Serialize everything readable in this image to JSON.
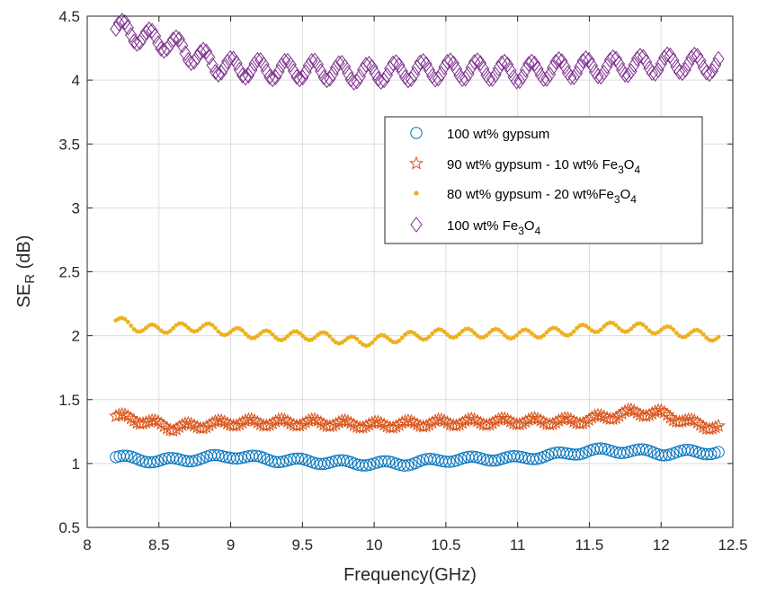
{
  "chart_data": {
    "type": "scatter",
    "title": "",
    "xlabel": "Frequency(GHz)",
    "ylabel_main": "SE",
    "ylabel_sub": "R",
    "ylabel_unit": " (dB)",
    "xlim": [
      8,
      12.5
    ],
    "ylim": [
      0.5,
      4.5
    ],
    "xticks": [
      "8",
      "8.5",
      "9",
      "9.5",
      "10",
      "10.5",
      "11",
      "11.5",
      "12",
      "12.5"
    ],
    "yticks": [
      "0.5",
      "1",
      "1.5",
      "2",
      "2.5",
      "3",
      "3.5",
      "4",
      "4.5"
    ],
    "grid": true,
    "legend_position": "upper-right",
    "series": [
      {
        "key": "gypsum100",
        "legend": [
          {
            "t": "100 wt% gypsum"
          }
        ],
        "marker": "circle",
        "color": "#0072BD",
        "x_start": 8.2,
        "x_end": 12.4,
        "anchors": [
          [
            8.2,
            1.05
          ],
          [
            8.5,
            1.02
          ],
          [
            8.8,
            1.04
          ],
          [
            9.0,
            1.06
          ],
          [
            9.3,
            1.03
          ],
          [
            9.7,
            1.01
          ],
          [
            10.0,
            1.0
          ],
          [
            10.2,
            1.0
          ],
          [
            10.5,
            1.03
          ],
          [
            10.8,
            1.04
          ],
          [
            11.0,
            1.04
          ],
          [
            11.3,
            1.07
          ],
          [
            11.5,
            1.1
          ],
          [
            11.8,
            1.1
          ],
          [
            12.0,
            1.08
          ],
          [
            12.2,
            1.09
          ],
          [
            12.4,
            1.09
          ]
        ]
      },
      {
        "key": "gypsum90",
        "legend": [
          {
            "t": "90 wt% gypsum - 10 wt% Fe"
          },
          {
            "t": "3",
            "s": "sub"
          },
          {
            "t": "O"
          },
          {
            "t": "4",
            "s": "sub"
          }
        ],
        "marker": "star",
        "color": "#D95319",
        "x_start": 8.2,
        "x_end": 12.4,
        "anchors": [
          [
            8.2,
            1.37
          ],
          [
            8.4,
            1.33
          ],
          [
            8.6,
            1.28
          ],
          [
            8.8,
            1.3
          ],
          [
            9.0,
            1.32
          ],
          [
            9.3,
            1.32
          ],
          [
            9.6,
            1.32
          ],
          [
            10.0,
            1.3
          ],
          [
            10.5,
            1.32
          ],
          [
            11.0,
            1.33
          ],
          [
            11.4,
            1.33
          ],
          [
            11.6,
            1.36
          ],
          [
            11.8,
            1.4
          ],
          [
            12.0,
            1.39
          ],
          [
            12.2,
            1.32
          ],
          [
            12.4,
            1.28
          ]
        ]
      },
      {
        "key": "gypsum80",
        "legend": [
          {
            "t": "80 wt% gypsum - 20 wt%Fe"
          },
          {
            "t": "3",
            "s": "sub"
          },
          {
            "t": "O"
          },
          {
            "t": "4",
            "s": "sub"
          }
        ],
        "marker": "dot",
        "color": "#EDB120",
        "x_start": 8.2,
        "x_end": 12.4,
        "anchors": [
          [
            8.2,
            2.12
          ],
          [
            8.4,
            2.05
          ],
          [
            8.6,
            2.06
          ],
          [
            8.8,
            2.07
          ],
          [
            9.0,
            2.03
          ],
          [
            9.3,
            2.0
          ],
          [
            9.6,
            2.0
          ],
          [
            9.9,
            1.95
          ],
          [
            10.2,
            1.99
          ],
          [
            10.5,
            2.02
          ],
          [
            10.8,
            2.02
          ],
          [
            11.0,
            2.01
          ],
          [
            11.3,
            2.03
          ],
          [
            11.6,
            2.07
          ],
          [
            11.9,
            2.06
          ],
          [
            12.1,
            2.03
          ],
          [
            12.4,
            1.99
          ]
        ]
      },
      {
        "key": "fe3o4",
        "legend": [
          {
            "t": "100 wt% Fe"
          },
          {
            "t": "3",
            "s": "sub"
          },
          {
            "t": "O"
          },
          {
            "t": "4",
            "s": "sub"
          }
        ],
        "marker": "diamond",
        "color": "#7E2F8E",
        "x_start": 8.2,
        "x_end": 12.4,
        "anchors": [
          [
            8.2,
            4.4
          ],
          [
            8.3,
            4.38
          ],
          [
            8.4,
            4.33
          ],
          [
            8.55,
            4.3
          ],
          [
            8.7,
            4.22
          ],
          [
            8.9,
            4.12
          ],
          [
            9.0,
            4.1
          ],
          [
            9.3,
            4.08
          ],
          [
            9.6,
            4.08
          ],
          [
            9.9,
            4.05
          ],
          [
            10.2,
            4.07
          ],
          [
            10.5,
            4.08
          ],
          [
            10.8,
            4.08
          ],
          [
            11.0,
            4.06
          ],
          [
            11.3,
            4.09
          ],
          [
            11.6,
            4.1
          ],
          [
            11.9,
            4.12
          ],
          [
            12.1,
            4.13
          ],
          [
            12.4,
            4.12
          ]
        ]
      }
    ]
  }
}
